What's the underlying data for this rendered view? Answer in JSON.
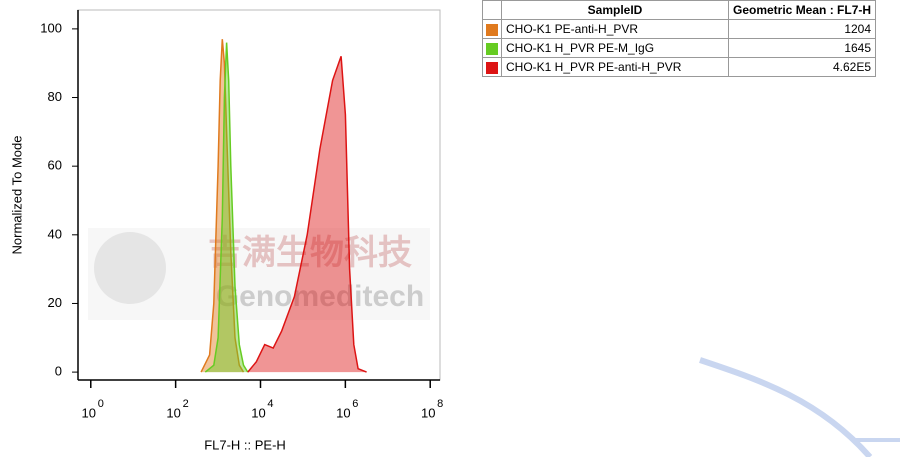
{
  "chart_data": {
    "type": "area",
    "xlabel": "FL7-H :: PE-H",
    "ylabel": "Normalized To Mode",
    "xscale": "log",
    "xlim": [
      0.5,
      170000000
    ],
    "ylim": [
      -2.3,
      105.5
    ],
    "xticks": [
      {
        "value": 1,
        "label": "10",
        "exponent": "0"
      },
      {
        "value": 100,
        "label": "10",
        "exponent": "2"
      },
      {
        "value": 10000,
        "label": "10",
        "exponent": "4"
      },
      {
        "value": 1000000,
        "label": "10",
        "exponent": "6"
      },
      {
        "value": 100000000,
        "label": "10",
        "exponent": "8"
      }
    ],
    "yticks": [
      0,
      20,
      40,
      60,
      80,
      100
    ],
    "series": [
      {
        "name": "CHO-K1 PE-anti-H_PVR",
        "color": "#e07a1e",
        "x": [
          398,
          631,
          794,
          1000,
          1122,
          1259,
          1413,
          1585,
          1995,
          2512,
          3162,
          3981
        ],
        "values": [
          0,
          5,
          20,
          60,
          85,
          97,
          90,
          70,
          35,
          10,
          2,
          0
        ]
      },
      {
        "name": "CHO-K1 H_PVR PE-M_IgG",
        "color": "#66cc22",
        "x": [
          501,
          794,
          1000,
          1259,
          1413,
          1585,
          1778,
          1995,
          2512,
          3162,
          3981,
          5012
        ],
        "values": [
          0,
          2,
          10,
          45,
          80,
          96,
          85,
          60,
          25,
          8,
          2,
          0
        ]
      },
      {
        "name": "CHO-K1 H_PVR PE-anti-H_PVR",
        "color": "#dd1414",
        "x": [
          5012,
          7943,
          12589,
          19953,
          31623,
          63096,
          125893,
          251189,
          501187,
          794328,
          1000000,
          1258925,
          1584893,
          1995262,
          3162278
        ],
        "values": [
          0,
          3,
          8,
          7,
          12,
          22,
          40,
          65,
          85,
          92,
          75,
          30,
          8,
          1,
          0
        ]
      }
    ],
    "watermark": {
      "cn": "吉满生物科技",
      "en": "Genomeditech"
    }
  },
  "table": {
    "header": [
      "SampleID",
      "Geometric Mean : FL7-H"
    ],
    "rows": [
      [
        "CHO-K1 PE-anti-H_PVR",
        "1204"
      ],
      [
        "CHO-K1 H_PVR PE-M_IgG",
        "1645"
      ],
      [
        "CHO-K1 H_PVR PE-anti-H_PVR",
        "4.62E5"
      ]
    ]
  }
}
